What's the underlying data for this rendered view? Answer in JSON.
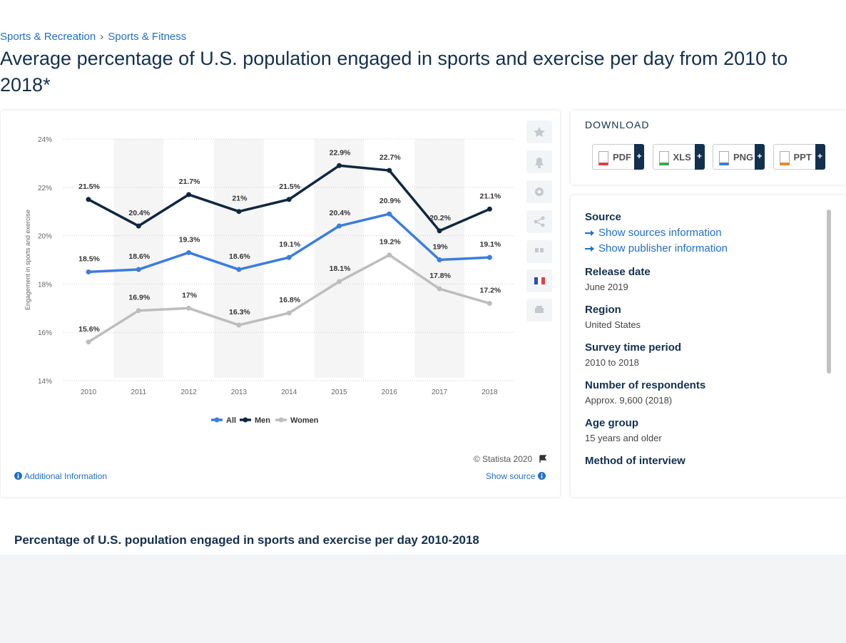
{
  "breadcrumb": [
    "Sports & Recreation",
    "Sports & Fitness"
  ],
  "title": "Average percentage of U.S. population engaged in sports and exercise per day from 2010 to 2018*",
  "chart_data": {
    "type": "line",
    "y_label": "Engagement in sports and exercise",
    "categories": [
      "2010",
      "2011",
      "2012",
      "2013",
      "2014",
      "2015",
      "2016",
      "2017",
      "2018"
    ],
    "series": [
      {
        "name": "All",
        "color": "#3b7ddd",
        "values": [
          18.5,
          18.6,
          19.3,
          18.6,
          19.1,
          20.4,
          20.9,
          19,
          19.1
        ],
        "value_labels": [
          "18.5%",
          "18.6%",
          "19.3%",
          "18.6%",
          "19.1%",
          "20.4%",
          "20.9%",
          "19%",
          "19.1%"
        ]
      },
      {
        "name": "Men",
        "color": "#0f2740",
        "values": [
          21.5,
          20.4,
          21.7,
          21,
          21.5,
          22.9,
          22.7,
          20.2,
          21.1
        ],
        "value_labels": [
          "21.5%",
          "20.4%",
          "21.7%",
          "21%",
          "21.5%",
          "22.9%",
          "22.7%",
          "20.2%",
          "21.1%"
        ]
      },
      {
        "name": "Women",
        "color": "#bdbdbd",
        "values": [
          15.6,
          16.9,
          17,
          16.3,
          16.8,
          18.1,
          19.2,
          17.8,
          17.2
        ],
        "value_labels": [
          "15.6%",
          "16.9%",
          "17%",
          "16.3%",
          "16.8%",
          "18.1%",
          "19.2%",
          "17.8%",
          "17.2%"
        ]
      }
    ],
    "ylim": [
      14,
      24
    ],
    "yticks": [
      {
        "value": 14,
        "label": "14%"
      },
      {
        "value": 16,
        "label": "16%"
      },
      {
        "value": 18,
        "label": "18%"
      },
      {
        "value": 20,
        "label": "20%"
      },
      {
        "value": 22,
        "label": "22%"
      },
      {
        "value": 24,
        "label": "24%"
      }
    ],
    "grid": true
  },
  "chart_footer": {
    "copyright": "© Statista 2020",
    "additional": "Additional Information",
    "show_source": "Show source"
  },
  "download": {
    "title": "DOWNLOAD",
    "formats": [
      "PDF",
      "XLS",
      "PNG",
      "PPT"
    ],
    "more": "+"
  },
  "info": [
    {
      "label": "Source",
      "links": [
        "Show sources information",
        "Show publisher information"
      ]
    },
    {
      "label": "Release date",
      "value": "June 2019"
    },
    {
      "label": "Region",
      "value": "United States"
    },
    {
      "label": "Survey time period",
      "value": "2010 to 2018"
    },
    {
      "label": "Number of respondents",
      "value": "Approx. 9,600 (2018)"
    },
    {
      "label": "Age group",
      "value": "15 years and older"
    },
    {
      "label": "Method of interview"
    }
  ],
  "related_title": "Percentage of U.S. population engaged in sports and exercise per day 2010-2018"
}
